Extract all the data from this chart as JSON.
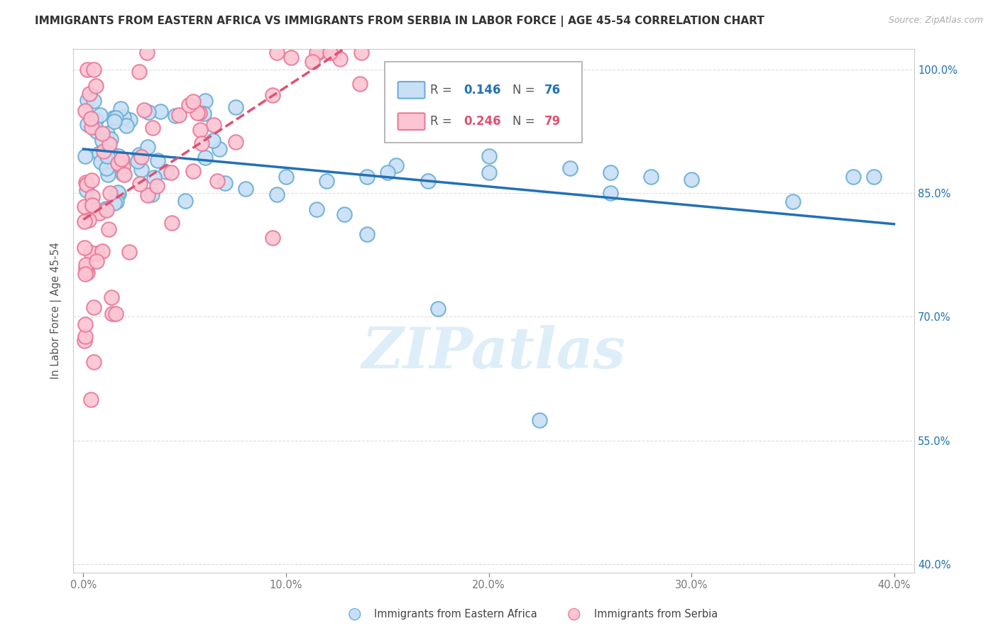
{
  "title": "IMMIGRANTS FROM EASTERN AFRICA VS IMMIGRANTS FROM SERBIA IN LABOR FORCE | AGE 45-54 CORRELATION CHART",
  "source": "Source: ZipAtlas.com",
  "ylabel": "In Labor Force | Age 45-54",
  "xlim": [
    -0.005,
    0.41
  ],
  "ylim": [
    0.39,
    1.025
  ],
  "ytick_labels": [
    "40.0%",
    "55.0%",
    "70.0%",
    "85.0%",
    "100.0%"
  ],
  "ytick_values": [
    0.4,
    0.55,
    0.7,
    0.85,
    1.0
  ],
  "xtick_labels": [
    "0.0%",
    "10.0%",
    "20.0%",
    "30.0%",
    "40.0%"
  ],
  "xtick_values": [
    0.0,
    0.1,
    0.2,
    0.3,
    0.4
  ],
  "series_blue": {
    "label": "Immigrants from Eastern Africa",
    "R": 0.146,
    "N": 76,
    "face_color": "#c8dff5",
    "edge_color": "#6baed6",
    "line_color": "#2171b5"
  },
  "series_pink": {
    "label": "Immigrants from Serbia",
    "R": 0.246,
    "N": 79,
    "face_color": "#fcc5d3",
    "edge_color": "#e87a9a",
    "line_color": "#e05070"
  },
  "watermark_text": "ZIPatlas",
  "watermark_color": "#ddeef8",
  "background_color": "#ffffff",
  "grid_color": "#dddddd",
  "title_fontsize": 11,
  "axis_fontsize": 10.5,
  "legend_fontsize": 12
}
